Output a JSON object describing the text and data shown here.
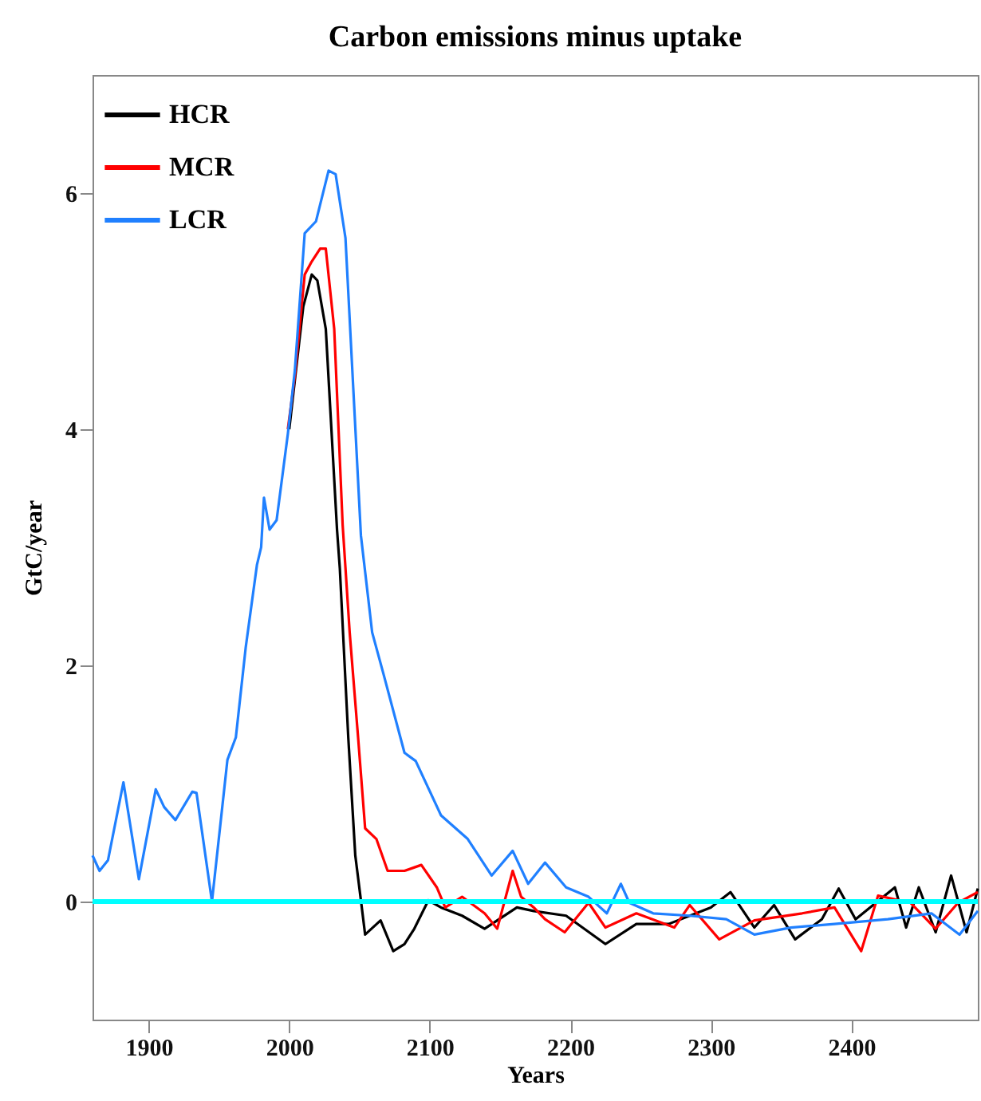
{
  "chart_data": {
    "type": "line",
    "title": "Carbon emissions minus uptake",
    "xlabel": "Years",
    "ylabel": "GtC/year",
    "xlim": [
      1860,
      2490
    ],
    "ylim": [
      -1,
      7
    ],
    "xticks": [
      1900,
      2000,
      2100,
      2200,
      2300,
      2400
    ],
    "yticks": [
      0,
      2,
      4,
      6
    ],
    "grid": false,
    "legend": "top left",
    "marker": "none",
    "line_style": "solid",
    "ref_lines": [
      {
        "axis": "y",
        "value": 0,
        "color": "#00ffff"
      }
    ],
    "series": [
      {
        "name": "HCR",
        "color": "#000000",
        "x": [
          2000,
          2010,
          2016,
          2020,
          2026,
          2034,
          2036,
          2042,
          2047,
          2051,
          2054,
          2065,
          2074,
          2082,
          2089,
          2099,
          2108,
          2123,
          2139,
          2162,
          2174,
          2197,
          2225,
          2247,
          2270,
          2300,
          2314,
          2331,
          2345,
          2360,
          2379,
          2391,
          2403,
          2431,
          2439,
          2448,
          2460,
          2471,
          2482,
          2490
        ],
        "values": [
          4.0,
          5.04,
          5.31,
          5.26,
          4.85,
          3.15,
          2.82,
          1.39,
          0.39,
          0.01,
          -0.28,
          -0.16,
          -0.42,
          -0.36,
          -0.23,
          0.01,
          -0.05,
          -0.12,
          -0.23,
          -0.05,
          -0.08,
          -0.12,
          -0.36,
          -0.19,
          -0.19,
          -0.05,
          0.08,
          -0.22,
          -0.03,
          -0.32,
          -0.15,
          0.11,
          -0.15,
          0.12,
          -0.22,
          0.12,
          -0.26,
          0.22,
          -0.26,
          0.11
        ]
      },
      {
        "name": "MCR",
        "color": "#ff0000",
        "x": [
          1999,
          2004,
          2011,
          2016,
          2022,
          2026,
          2032,
          2038,
          2043,
          2049,
          2054,
          2062,
          2070,
          2082,
          2094,
          2105,
          2111,
          2123,
          2139,
          2148,
          2159,
          2165,
          2174,
          2182,
          2196,
          2213,
          2225,
          2247,
          2274,
          2285,
          2306,
          2331,
          2365,
          2388,
          2407,
          2419,
          2442,
          2460,
          2476,
          2490
        ],
        "values": [
          4.0,
          4.45,
          5.31,
          5.42,
          5.53,
          5.53,
          4.85,
          3.19,
          2.28,
          1.39,
          0.62,
          0.53,
          0.26,
          0.26,
          0.31,
          0.12,
          -0.05,
          0.04,
          -0.1,
          -0.23,
          0.26,
          0.04,
          -0.05,
          -0.15,
          -0.26,
          -0.01,
          -0.22,
          -0.1,
          -0.22,
          -0.03,
          -0.32,
          -0.16,
          -0.1,
          -0.05,
          -0.42,
          0.05,
          -0.01,
          -0.23,
          -0.01,
          0.08
        ]
      },
      {
        "name": "LCR",
        "color": "#2080ff",
        "x": [
          1860,
          1865,
          1871,
          1882,
          1893,
          1905,
          1911,
          1919,
          1931,
          1934,
          1945,
          1956,
          1962,
          1969,
          1977,
          1980,
          1982,
          1986,
          1991,
          1999,
          2004,
          2011,
          2019,
          2028,
          2033,
          2040,
          2051,
          2059,
          2067,
          2082,
          2090,
          2108,
          2127,
          2144,
          2159,
          2170,
          2182,
          2197,
          2213,
          2226,
          2236,
          2242,
          2259,
          2285,
          2311,
          2331,
          2357,
          2388,
          2426,
          2457,
          2477,
          2490
        ],
        "values": [
          0.39,
          0.26,
          0.35,
          1.01,
          0.19,
          0.95,
          0.8,
          0.69,
          0.93,
          0.92,
          0.0,
          1.2,
          1.39,
          2.15,
          2.85,
          3.0,
          3.42,
          3.15,
          3.23,
          3.96,
          4.5,
          5.66,
          5.76,
          6.19,
          6.16,
          5.62,
          3.1,
          2.28,
          1.93,
          1.26,
          1.19,
          0.73,
          0.53,
          0.22,
          0.43,
          0.15,
          0.33,
          0.12,
          0.04,
          -0.1,
          0.15,
          -0.01,
          -0.1,
          -0.12,
          -0.15,
          -0.28,
          -0.22,
          -0.19,
          -0.15,
          -0.1,
          -0.28,
          -0.08
        ]
      }
    ]
  }
}
